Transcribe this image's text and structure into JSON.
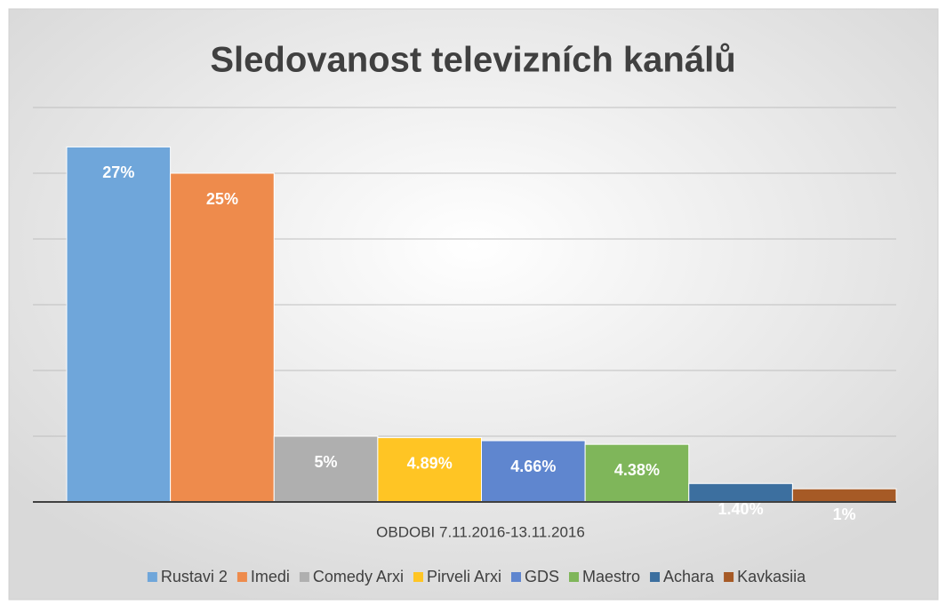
{
  "chart_data": {
    "type": "bar",
    "title": "Sledovanost televizních kanálů",
    "categories": [
      "OBDOBI 7.11.2016-13.11.2016"
    ],
    "series": [
      {
        "name": "Rustavi 2",
        "color": "#6fa6da",
        "values": [
          27
        ],
        "value_labels": [
          "27%"
        ]
      },
      {
        "name": "Imedi",
        "color": "#ee8b4c",
        "values": [
          25
        ],
        "value_labels": [
          "25%"
        ]
      },
      {
        "name": "Comedy Arxi",
        "color": "#afafaf",
        "values": [
          5
        ],
        "value_labels": [
          "5%"
        ]
      },
      {
        "name": "Pirveli Arxi",
        "color": "#ffc524",
        "values": [
          4.89
        ],
        "value_labels": [
          "4.89%"
        ]
      },
      {
        "name": "GDS",
        "color": "#5f86cf",
        "values": [
          4.66
        ],
        "value_labels": [
          "4.66%"
        ]
      },
      {
        "name": "Maestro",
        "color": "#7fb65a",
        "values": [
          4.38
        ],
        "value_labels": [
          "4.38%"
        ]
      },
      {
        "name": "Achara",
        "color": "#3c6f9f",
        "values": [
          1.4
        ],
        "value_labels": [
          "1.40%"
        ]
      },
      {
        "name": "Kavkasiia",
        "color": "#a65a26",
        "values": [
          1
        ],
        "value_labels": [
          "1%"
        ]
      }
    ],
    "ylim": [
      0,
      30
    ],
    "yticks": [
      0,
      5,
      10,
      15,
      20,
      25,
      30
    ],
    "grid": true,
    "legend": "bottom"
  }
}
